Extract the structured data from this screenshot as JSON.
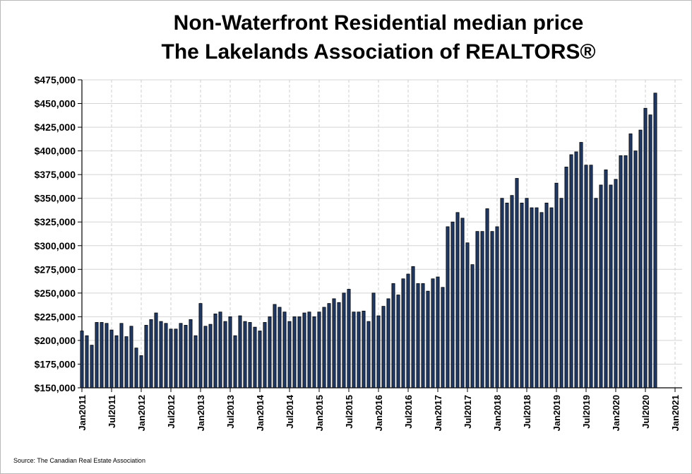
{
  "chart_data": {
    "type": "bar",
    "title_lines": [
      "Non-Waterfront Residential median price",
      "The Lakelands Association of REALTORS®"
    ],
    "source": "Source: The Canadian Real Estate Association",
    "ylim": [
      150000,
      475000
    ],
    "yticks": [
      "$150,000",
      "$175,000",
      "$200,000",
      "$225,000",
      "$250,000",
      "$275,000",
      "$300,000",
      "$325,000",
      "$350,000",
      "$375,000",
      "$400,000",
      "$425,000",
      "$450,000",
      "$475,000"
    ],
    "xticks": [
      "Jan2011",
      "Jul2011",
      "Jan2012",
      "Jul2012",
      "Jan2013",
      "Jul2013",
      "Jan2014",
      "Jul2014",
      "Jan2015",
      "Jul2015",
      "Jan2016",
      "Jul2016",
      "Jan2017",
      "Jul2017",
      "Jan2018",
      "Jul2018",
      "Jan2019",
      "Jul2019",
      "Jan2020",
      "Jul2020",
      "Jan2021"
    ],
    "grid": true,
    "bar_color": "#1f3a68",
    "bar_edge_color": "#000000",
    "start_month": "Jan2011",
    "values": [
      210000,
      205000,
      195000,
      219000,
      219000,
      218000,
      211000,
      205000,
      218000,
      204000,
      215000,
      192000,
      184000,
      216000,
      222000,
      229000,
      220000,
      218000,
      212000,
      212000,
      218000,
      216000,
      222000,
      205000,
      239000,
      215000,
      217000,
      228000,
      230000,
      220000,
      225000,
      205000,
      226000,
      220000,
      219000,
      214000,
      210000,
      219000,
      225000,
      238000,
      235000,
      230000,
      220000,
      225000,
      225000,
      229000,
      230000,
      225000,
      230000,
      235000,
      239000,
      244000,
      240000,
      250000,
      254000,
      230000,
      230000,
      231000,
      220000,
      250000,
      226000,
      236000,
      244000,
      260000,
      248000,
      265000,
      270000,
      278000,
      260000,
      260000,
      252000,
      265000,
      267000,
      256000,
      320000,
      325000,
      335000,
      329000,
      303000,
      280000,
      315000,
      315000,
      339000,
      315000,
      320000,
      350000,
      345000,
      353000,
      371000,
      345000,
      350000,
      340000,
      340000,
      335000,
      345000,
      340000,
      366000,
      350000,
      383000,
      396000,
      399000,
      409000,
      385000,
      385000,
      350000,
      364000,
      380000,
      364000,
      370000,
      395000,
      395000,
      418000,
      400000,
      422000,
      445000,
      438000,
      461000
    ]
  }
}
